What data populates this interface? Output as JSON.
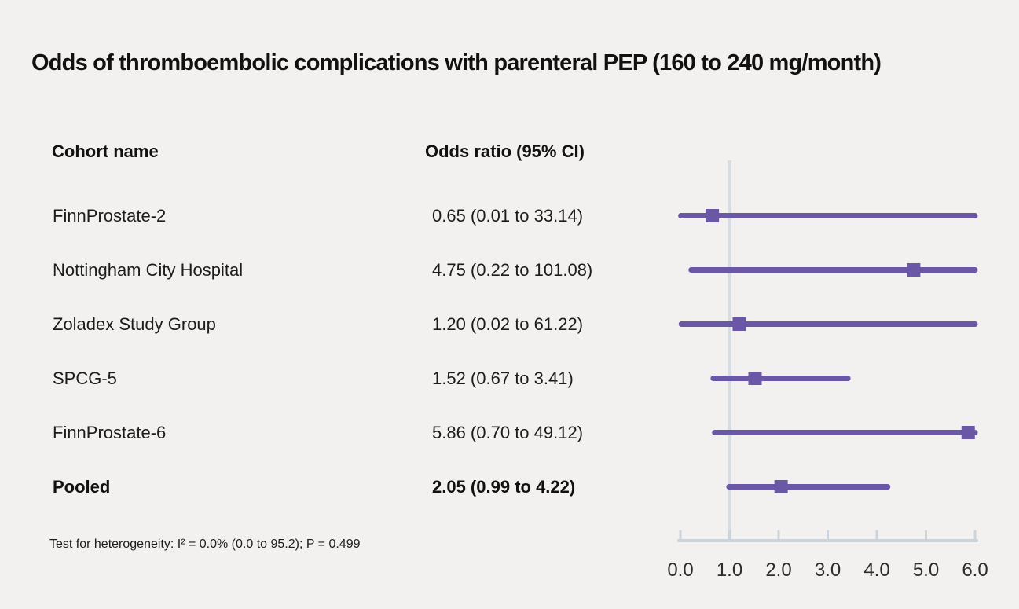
{
  "chart_data": {
    "type": "forest",
    "title": "Odds of thromboembolic complications with parenteral PEP (160 to 240 mg/month)",
    "columns": [
      "Cohort name",
      "Odds ratio (95% CI)"
    ],
    "rows": [
      {
        "label": "FinnProstate-2",
        "display": "0.65 (0.01 to 33.14)",
        "or": 0.65,
        "ci_low": 0.01,
        "ci_high": 33.14,
        "bold": false
      },
      {
        "label": "Nottingham City Hospital",
        "display": "4.75 (0.22 to 101.08)",
        "or": 4.75,
        "ci_low": 0.22,
        "ci_high": 101.08,
        "bold": false
      },
      {
        "label": "Zoladex Study Group",
        "display": "1.20 (0.02 to 61.22)",
        "or": 1.2,
        "ci_low": 0.02,
        "ci_high": 61.22,
        "bold": false
      },
      {
        "label": "SPCG-5",
        "display": "1.52 (0.67 to 3.41)",
        "or": 1.52,
        "ci_low": 0.67,
        "ci_high": 3.41,
        "bold": false
      },
      {
        "label": "FinnProstate-6",
        "display": "5.86 (0.70 to 49.12)",
        "or": 5.86,
        "ci_low": 0.7,
        "ci_high": 49.12,
        "bold": false
      },
      {
        "label": "Pooled",
        "display": "2.05 (0.99 to 4.22)",
        "or": 2.05,
        "ci_low": 0.99,
        "ci_high": 4.22,
        "bold": true
      }
    ],
    "x_axis": {
      "ticks": [
        0,
        1,
        2,
        3,
        4,
        5,
        6
      ],
      "tick_labels": [
        "0.0",
        "1.0",
        "2.0",
        "3.0",
        "4.0",
        "5.0",
        "6.0"
      ],
      "xlim": [
        0,
        6
      ],
      "reference_line": 1.0
    },
    "footnote": "Test for heterogeneity: I² = 0.0% (0.0 to 95.2); P = 0.499",
    "colors": {
      "accent": "#6a57a5",
      "axis": "#ccd3da",
      "reference_line": "#d8dde2",
      "tick_label_text": "#2d2d2d",
      "text": "#1c1c1c"
    }
  }
}
